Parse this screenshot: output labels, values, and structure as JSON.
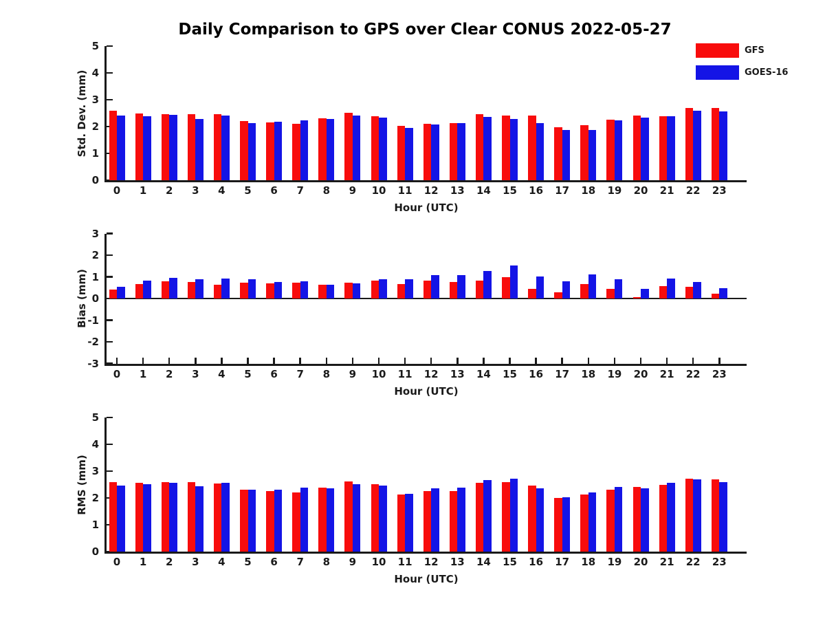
{
  "title": "Daily Comparison to GPS over Clear CONUS 2022-05-27",
  "colors": {
    "gfs_red": "#f80c0c",
    "goes_blue": "#1414e6",
    "axis": "#1a1a1a",
    "title_text": "#000000"
  },
  "legend": {
    "items": [
      {
        "label": "GFS",
        "color": "#f80c0c"
      },
      {
        "label": "GOES-16",
        "color": "#1414e6"
      }
    ]
  },
  "chart_data": [
    {
      "type": "bar",
      "title": "",
      "ylabel": "Std. Dev. (mm)",
      "xlabel": "Hour (UTC)",
      "ylim": [
        0,
        5
      ],
      "yticks": [
        0,
        1,
        2,
        3,
        4,
        5
      ],
      "grid": false,
      "legend_position": "upper-right-outside",
      "categories": [
        "0",
        "1",
        "2",
        "3",
        "4",
        "5",
        "6",
        "7",
        "8",
        "9",
        "10",
        "11",
        "12",
        "13",
        "14",
        "15",
        "16",
        "17",
        "18",
        "19",
        "20",
        "21",
        "22",
        "23"
      ],
      "series": [
        {
          "name": "GFS",
          "color": "#f80c0c",
          "values": [
            2.58,
            2.48,
            2.47,
            2.47,
            2.45,
            2.21,
            2.16,
            2.11,
            2.31,
            2.51,
            2.39,
            2.02,
            2.1,
            2.12,
            2.45,
            2.4,
            2.4,
            1.97,
            2.04,
            2.26,
            2.4,
            2.39,
            2.68,
            2.69
          ]
        },
        {
          "name": "GOES-16",
          "color": "#1414e6",
          "values": [
            2.42,
            2.38,
            2.43,
            2.29,
            2.41,
            2.13,
            2.19,
            2.24,
            2.29,
            2.41,
            2.33,
            1.95,
            2.08,
            2.12,
            2.36,
            2.27,
            2.12,
            1.86,
            1.88,
            2.24,
            2.34,
            2.38,
            2.58,
            2.56
          ]
        }
      ]
    },
    {
      "type": "bar",
      "title": "",
      "ylabel": "Bias (mm)",
      "xlabel": "Hour (UTC)",
      "ylim": [
        -3,
        3
      ],
      "yticks": [
        -3,
        -2,
        -1,
        0,
        1,
        2,
        3
      ],
      "grid": false,
      "categories": [
        "0",
        "1",
        "2",
        "3",
        "4",
        "5",
        "6",
        "7",
        "8",
        "9",
        "10",
        "11",
        "12",
        "13",
        "14",
        "15",
        "16",
        "17",
        "18",
        "19",
        "20",
        "21",
        "22",
        "23"
      ],
      "series": [
        {
          "name": "GFS",
          "color": "#f80c0c",
          "values": [
            0.42,
            0.67,
            0.8,
            0.77,
            0.64,
            0.73,
            0.7,
            0.74,
            0.64,
            0.73,
            0.82,
            0.68,
            0.82,
            0.76,
            0.83,
            0.98,
            0.46,
            0.27,
            0.67,
            0.44,
            0.07,
            0.58,
            0.53,
            0.21
          ]
        },
        {
          "name": "GOES-16",
          "color": "#1414e6",
          "values": [
            0.55,
            0.82,
            0.95,
            0.88,
            0.92,
            0.89,
            0.76,
            0.79,
            0.63,
            0.7,
            0.9,
            0.9,
            1.07,
            1.08,
            1.27,
            1.53,
            1.03,
            0.8,
            1.11,
            0.9,
            0.43,
            0.93,
            0.76,
            0.48
          ]
        }
      ]
    },
    {
      "type": "bar",
      "title": "",
      "ylabel": "RMS (mm)",
      "xlabel": "Hour (UTC)",
      "ylim": [
        0,
        5
      ],
      "yticks": [
        0,
        1,
        2,
        3,
        4,
        5
      ],
      "grid": false,
      "categories": [
        "0",
        "1",
        "2",
        "3",
        "4",
        "5",
        "6",
        "7",
        "8",
        "9",
        "10",
        "11",
        "12",
        "13",
        "14",
        "15",
        "16",
        "17",
        "18",
        "19",
        "20",
        "21",
        "22",
        "23"
      ],
      "series": [
        {
          "name": "GFS",
          "color": "#f80c0c",
          "values": [
            2.6,
            2.56,
            2.6,
            2.6,
            2.54,
            2.32,
            2.26,
            2.21,
            2.39,
            2.62,
            2.51,
            2.14,
            2.26,
            2.25,
            2.56,
            2.6,
            2.47,
            2.0,
            2.13,
            2.31,
            2.42,
            2.49,
            2.73,
            2.7
          ]
        },
        {
          "name": "GOES-16",
          "color": "#1414e6",
          "values": [
            2.47,
            2.52,
            2.56,
            2.44,
            2.57,
            2.32,
            2.3,
            2.38,
            2.37,
            2.51,
            2.45,
            2.15,
            2.37,
            2.38,
            2.66,
            2.73,
            2.37,
            2.03,
            2.21,
            2.4,
            2.36,
            2.56,
            2.7,
            2.6
          ]
        }
      ]
    }
  ]
}
